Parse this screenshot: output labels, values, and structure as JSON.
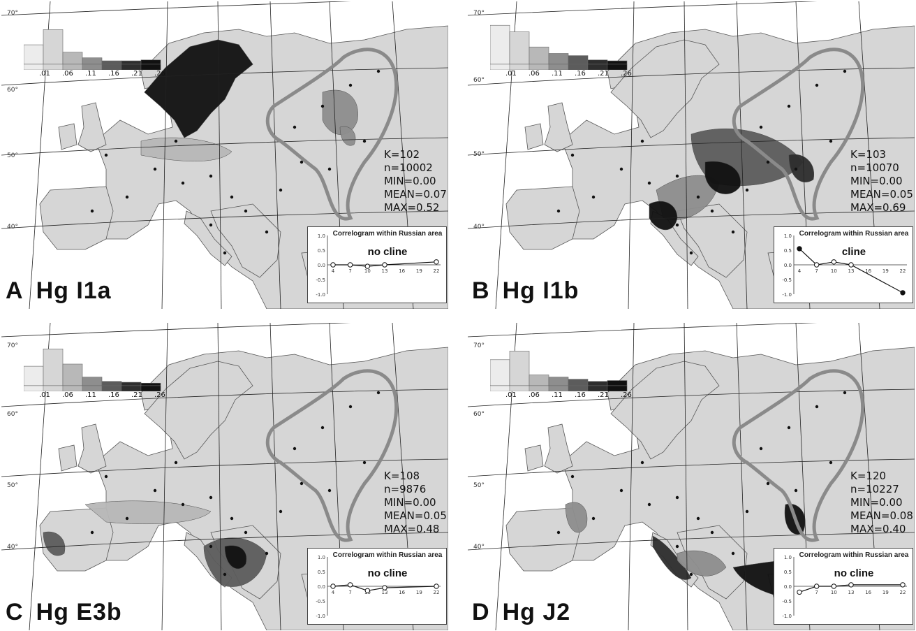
{
  "lat_labels": [
    "70°",
    "60°",
    "50°",
    "40°"
  ],
  "legend": {
    "tick_labels": [
      ".01",
      ".06",
      ".11",
      ".16",
      ".21",
      ".26"
    ],
    "shades": [
      "#ececec",
      "#d6d6d6",
      "#b8b8b8",
      "#8e8e8e",
      "#5c5c5c",
      "#2e2e2e",
      "#111111"
    ]
  },
  "correlogram_title": "Correlogram within Russian area",
  "correlogram_axis": {
    "y_ticks": [
      "1.0",
      "0.5",
      "0.0",
      "-0.5",
      "-1.0"
    ],
    "x_ticks": [
      "4",
      "7",
      "10",
      "13",
      "16",
      "19",
      "22"
    ]
  },
  "panels": [
    {
      "letter": "A",
      "haplogroup": "Hg I1a",
      "stats": {
        "k": "K=102",
        "n": "n=10002",
        "min": "MIN=0.00",
        "mean": "MEAN=0.07",
        "max": "MAX=0.52"
      },
      "histogram": [
        0.45,
        0.8,
        0.28,
        0.15,
        0.08,
        0.08,
        0.1
      ],
      "correlogram_verdict": "no cline",
      "correlogram_points": [
        0.0,
        0.0,
        -0.05,
        0.0,
        0.1
      ]
    },
    {
      "letter": "B",
      "haplogroup": "Hg I1b",
      "stats": {
        "k": "K=103",
        "n": "n=10070",
        "min": "MIN=0.00",
        "mean": "MEAN=0.05",
        "max": "MAX=0.69"
      },
      "histogram": [
        0.9,
        0.75,
        0.4,
        0.25,
        0.2,
        0.1,
        0.08
      ],
      "correlogram_verdict": "cline",
      "correlogram_points": [
        0.55,
        0.0,
        0.1,
        0.0,
        -0.95
      ]
    },
    {
      "letter": "C",
      "haplogroup": "Hg E3b",
      "stats": {
        "k": "K=108",
        "n": "n=9876",
        "min": "MIN=0.00",
        "mean": "MEAN=0.05",
        "max": "MAX=0.48"
      },
      "histogram": [
        0.45,
        0.85,
        0.5,
        0.2,
        0.1,
        0.08,
        0.06
      ],
      "correlogram_verdict": "no cline",
      "correlogram_points": [
        0.0,
        0.05,
        -0.15,
        -0.05,
        0.0
      ]
    },
    {
      "letter": "D",
      "haplogroup": "Hg J2",
      "stats": {
        "k": "K=120",
        "n": "n=10227",
        "min": "MIN=0.00",
        "mean": "MEAN=0.08",
        "max": "MAX=0.40"
      },
      "histogram": [
        0.6,
        0.8,
        0.25,
        0.2,
        0.15,
        0.1,
        0.12
      ],
      "correlogram_verdict": "no cline",
      "correlogram_points": [
        -0.2,
        0.0,
        0.0,
        0.05,
        0.05
      ]
    }
  ]
}
